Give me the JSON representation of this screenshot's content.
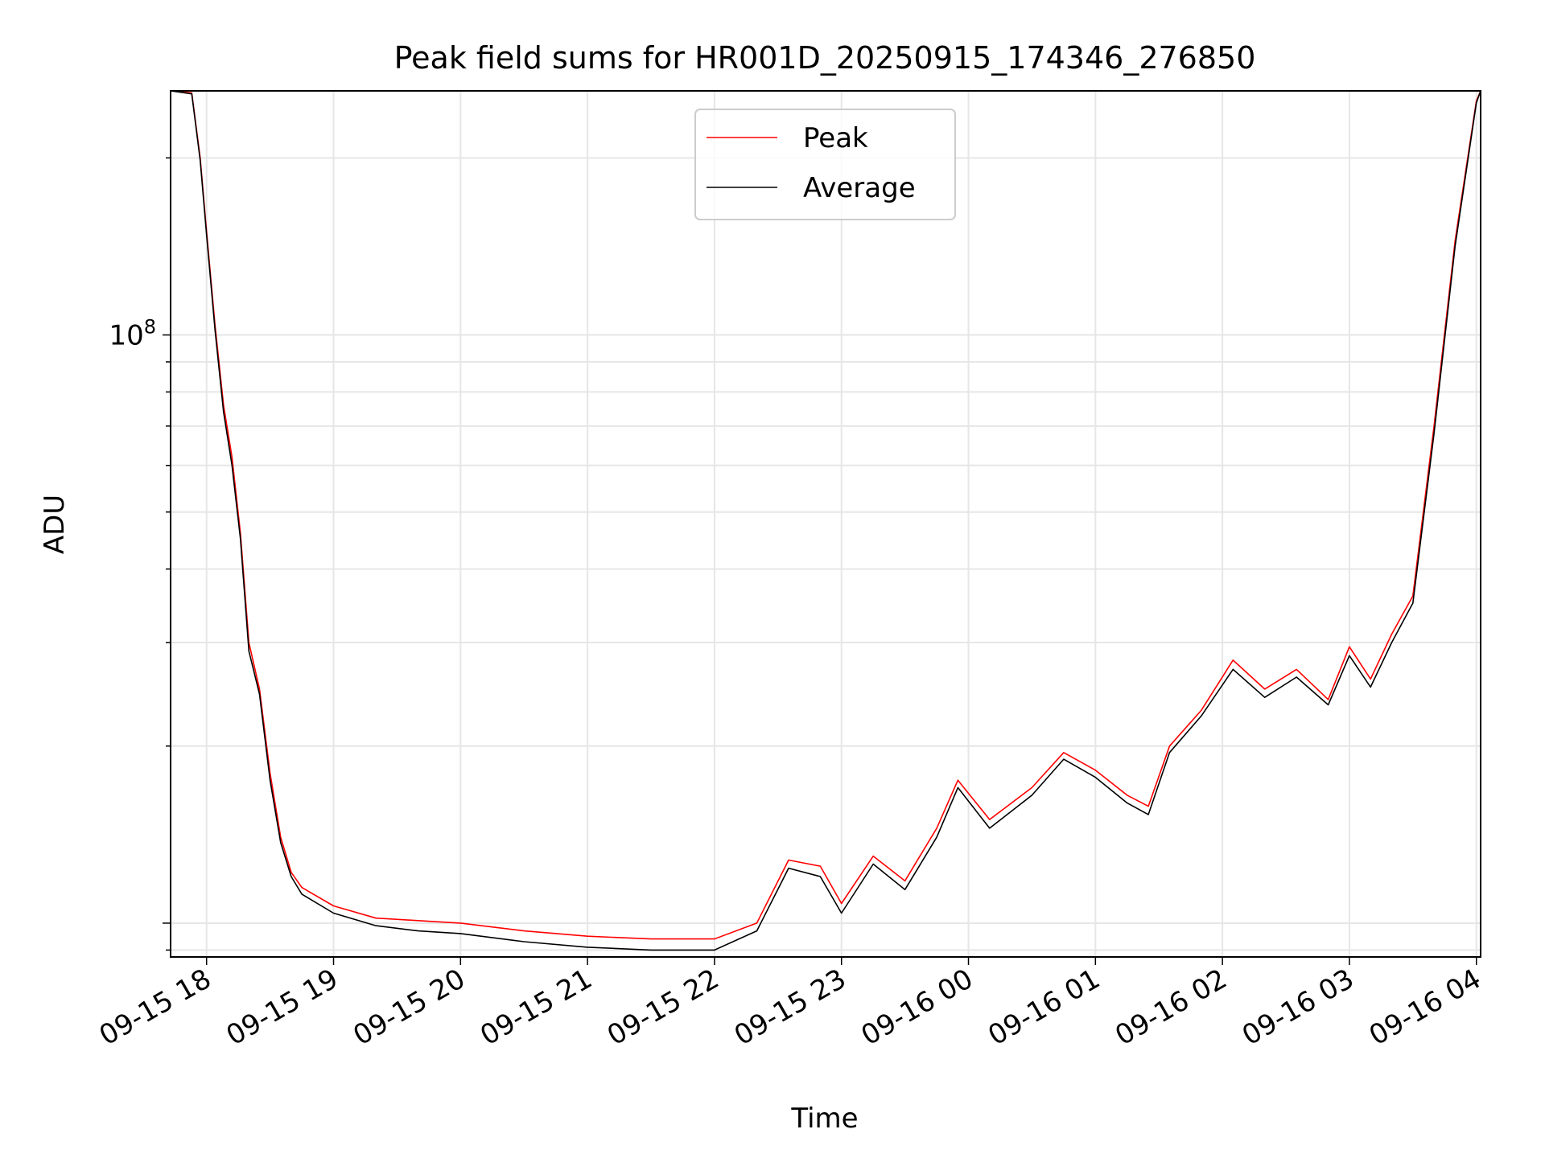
{
  "chart_data": {
    "type": "line",
    "title": "Peak field sums for HR001D_20250915_174346_276850",
    "xlabel": "Time",
    "ylabel": "ADU",
    "yscale": "log",
    "ylim": [
      8760000.0,
      260000000.0
    ],
    "xlim": [
      "2025-09-15 17:43",
      "2025-09-16 04:02"
    ],
    "grid": true,
    "legend_position": "top-center",
    "x_tick_labels": [
      "09-15 18",
      "09-15 19",
      "09-15 20",
      "09-15 21",
      "09-15 22",
      "09-15 23",
      "09-16 00",
      "09-16 01",
      "09-16 02",
      "09-16 03",
      "09-16 04"
    ],
    "x_tick_times": [
      "2025-09-15 18:00",
      "2025-09-15 19:00",
      "2025-09-15 20:00",
      "2025-09-15 21:00",
      "2025-09-15 22:00",
      "2025-09-15 23:00",
      "2025-09-16 00:00",
      "2025-09-16 01:00",
      "2025-09-16 02:00",
      "2025-09-16 03:00",
      "2025-09-16 04:00"
    ],
    "y_tick_labels": [
      {
        "base": "10",
        "exp": "8",
        "value": 100000000.0
      }
    ],
    "series": [
      {
        "name": "Peak",
        "color": "#ff0000",
        "x": [
          "2025-09-15 17:43",
          "2025-09-15 17:53",
          "2025-09-15 17:57",
          "2025-09-15 18:00",
          "2025-09-15 18:04",
          "2025-09-15 18:08",
          "2025-09-15 18:12",
          "2025-09-15 18:16",
          "2025-09-15 18:20",
          "2025-09-15 18:25",
          "2025-09-15 18:30",
          "2025-09-15 18:35",
          "2025-09-15 18:40",
          "2025-09-15 18:45",
          "2025-09-15 19:00",
          "2025-09-15 19:20",
          "2025-09-15 19:40",
          "2025-09-15 20:00",
          "2025-09-15 20:30",
          "2025-09-15 21:00",
          "2025-09-15 21:30",
          "2025-09-15 22:00",
          "2025-09-15 22:20",
          "2025-09-15 22:35",
          "2025-09-15 22:50",
          "2025-09-15 23:00",
          "2025-09-15 23:15",
          "2025-09-15 23:30",
          "2025-09-15 23:45",
          "2025-09-15 23:55",
          "2025-09-16 00:10",
          "2025-09-16 00:30",
          "2025-09-16 00:45",
          "2025-09-16 01:00",
          "2025-09-16 01:15",
          "2025-09-16 01:25",
          "2025-09-16 01:35",
          "2025-09-16 01:50",
          "2025-09-16 02:05",
          "2025-09-16 02:20",
          "2025-09-16 02:35",
          "2025-09-16 02:50",
          "2025-09-16 03:00",
          "2025-09-16 03:10",
          "2025-09-16 03:20",
          "2025-09-16 03:30",
          "2025-09-16 03:40",
          "2025-09-16 03:50",
          "2025-09-16 04:00",
          "2025-09-16 04:02"
        ],
        "values": [
          260000000.0,
          258000000.0,
          200000000.0,
          150000000.0,
          104000000.0,
          76000000.0,
          62000000.0,
          46000000.0,
          30000000.0,
          25000000.0,
          18000000.0,
          14000000.0,
          12200000.0,
          11500000.0,
          10700000.0,
          10200000.0,
          10100000.0,
          10000000.0,
          9700000.0,
          9500000.0,
          9400000.0,
          9400000.0,
          10000000.0,
          12800000.0,
          12500000.0,
          10800000.0,
          13000000.0,
          11800000.0,
          14500000.0,
          17500000.0,
          15000000.0,
          17000000.0,
          19500000.0,
          18200000.0,
          16500000.0,
          15800000.0,
          20000000.0,
          23000000.0,
          28000000.0,
          25000000.0,
          27000000.0,
          24000000.0,
          29500000.0,
          26000000.0,
          31000000.0,
          36000000.0,
          70000000.0,
          145000000.0,
          250000000.0,
          260000000.0
        ]
      },
      {
        "name": "Average",
        "color": "#000000",
        "x": [
          "2025-09-15 17:43",
          "2025-09-15 17:53",
          "2025-09-15 17:57",
          "2025-09-15 18:00",
          "2025-09-15 18:04",
          "2025-09-15 18:08",
          "2025-09-15 18:12",
          "2025-09-15 18:16",
          "2025-09-15 18:20",
          "2025-09-15 18:25",
          "2025-09-15 18:30",
          "2025-09-15 18:35",
          "2025-09-15 18:40",
          "2025-09-15 18:45",
          "2025-09-15 19:00",
          "2025-09-15 19:20",
          "2025-09-15 19:40",
          "2025-09-15 20:00",
          "2025-09-15 20:30",
          "2025-09-15 21:00",
          "2025-09-15 21:30",
          "2025-09-15 22:00",
          "2025-09-15 22:20",
          "2025-09-15 22:35",
          "2025-09-15 22:50",
          "2025-09-15 23:00",
          "2025-09-15 23:15",
          "2025-09-15 23:30",
          "2025-09-15 23:45",
          "2025-09-15 23:55",
          "2025-09-16 00:10",
          "2025-09-16 00:30",
          "2025-09-16 00:45",
          "2025-09-16 01:00",
          "2025-09-16 01:15",
          "2025-09-16 01:25",
          "2025-09-16 01:35",
          "2025-09-16 01:50",
          "2025-09-16 02:05",
          "2025-09-16 02:20",
          "2025-09-16 02:35",
          "2025-09-16 02:50",
          "2025-09-16 03:00",
          "2025-09-16 03:10",
          "2025-09-16 03:20",
          "2025-09-16 03:30",
          "2025-09-16 03:40",
          "2025-09-16 03:50",
          "2025-09-16 04:00",
          "2025-09-16 04:02"
        ],
        "values": [
          260000000.0,
          257000000.0,
          198000000.0,
          148000000.0,
          102000000.0,
          74000000.0,
          60000000.0,
          45000000.0,
          29000000.0,
          24500000.0,
          17500000.0,
          13700000.0,
          12000000.0,
          11200000.0,
          10400000.0,
          9900000.0,
          9700000.0,
          9600000.0,
          9300000.0,
          9100000.0,
          9000000.0,
          9000000.0,
          9700000.0,
          12400000.0,
          12000000.0,
          10400000.0,
          12600000.0,
          11400000.0,
          14000000.0,
          17000000.0,
          14500000.0,
          16500000.0,
          19000000.0,
          17700000.0,
          16000000.0,
          15300000.0,
          19500000.0,
          22500000.0,
          27000000.0,
          24200000.0,
          26200000.0,
          23500000.0,
          28500000.0,
          25200000.0,
          30000000.0,
          35000000.0,
          68000000.0,
          142000000.0,
          248000000.0,
          260000000.0
        ]
      }
    ]
  }
}
